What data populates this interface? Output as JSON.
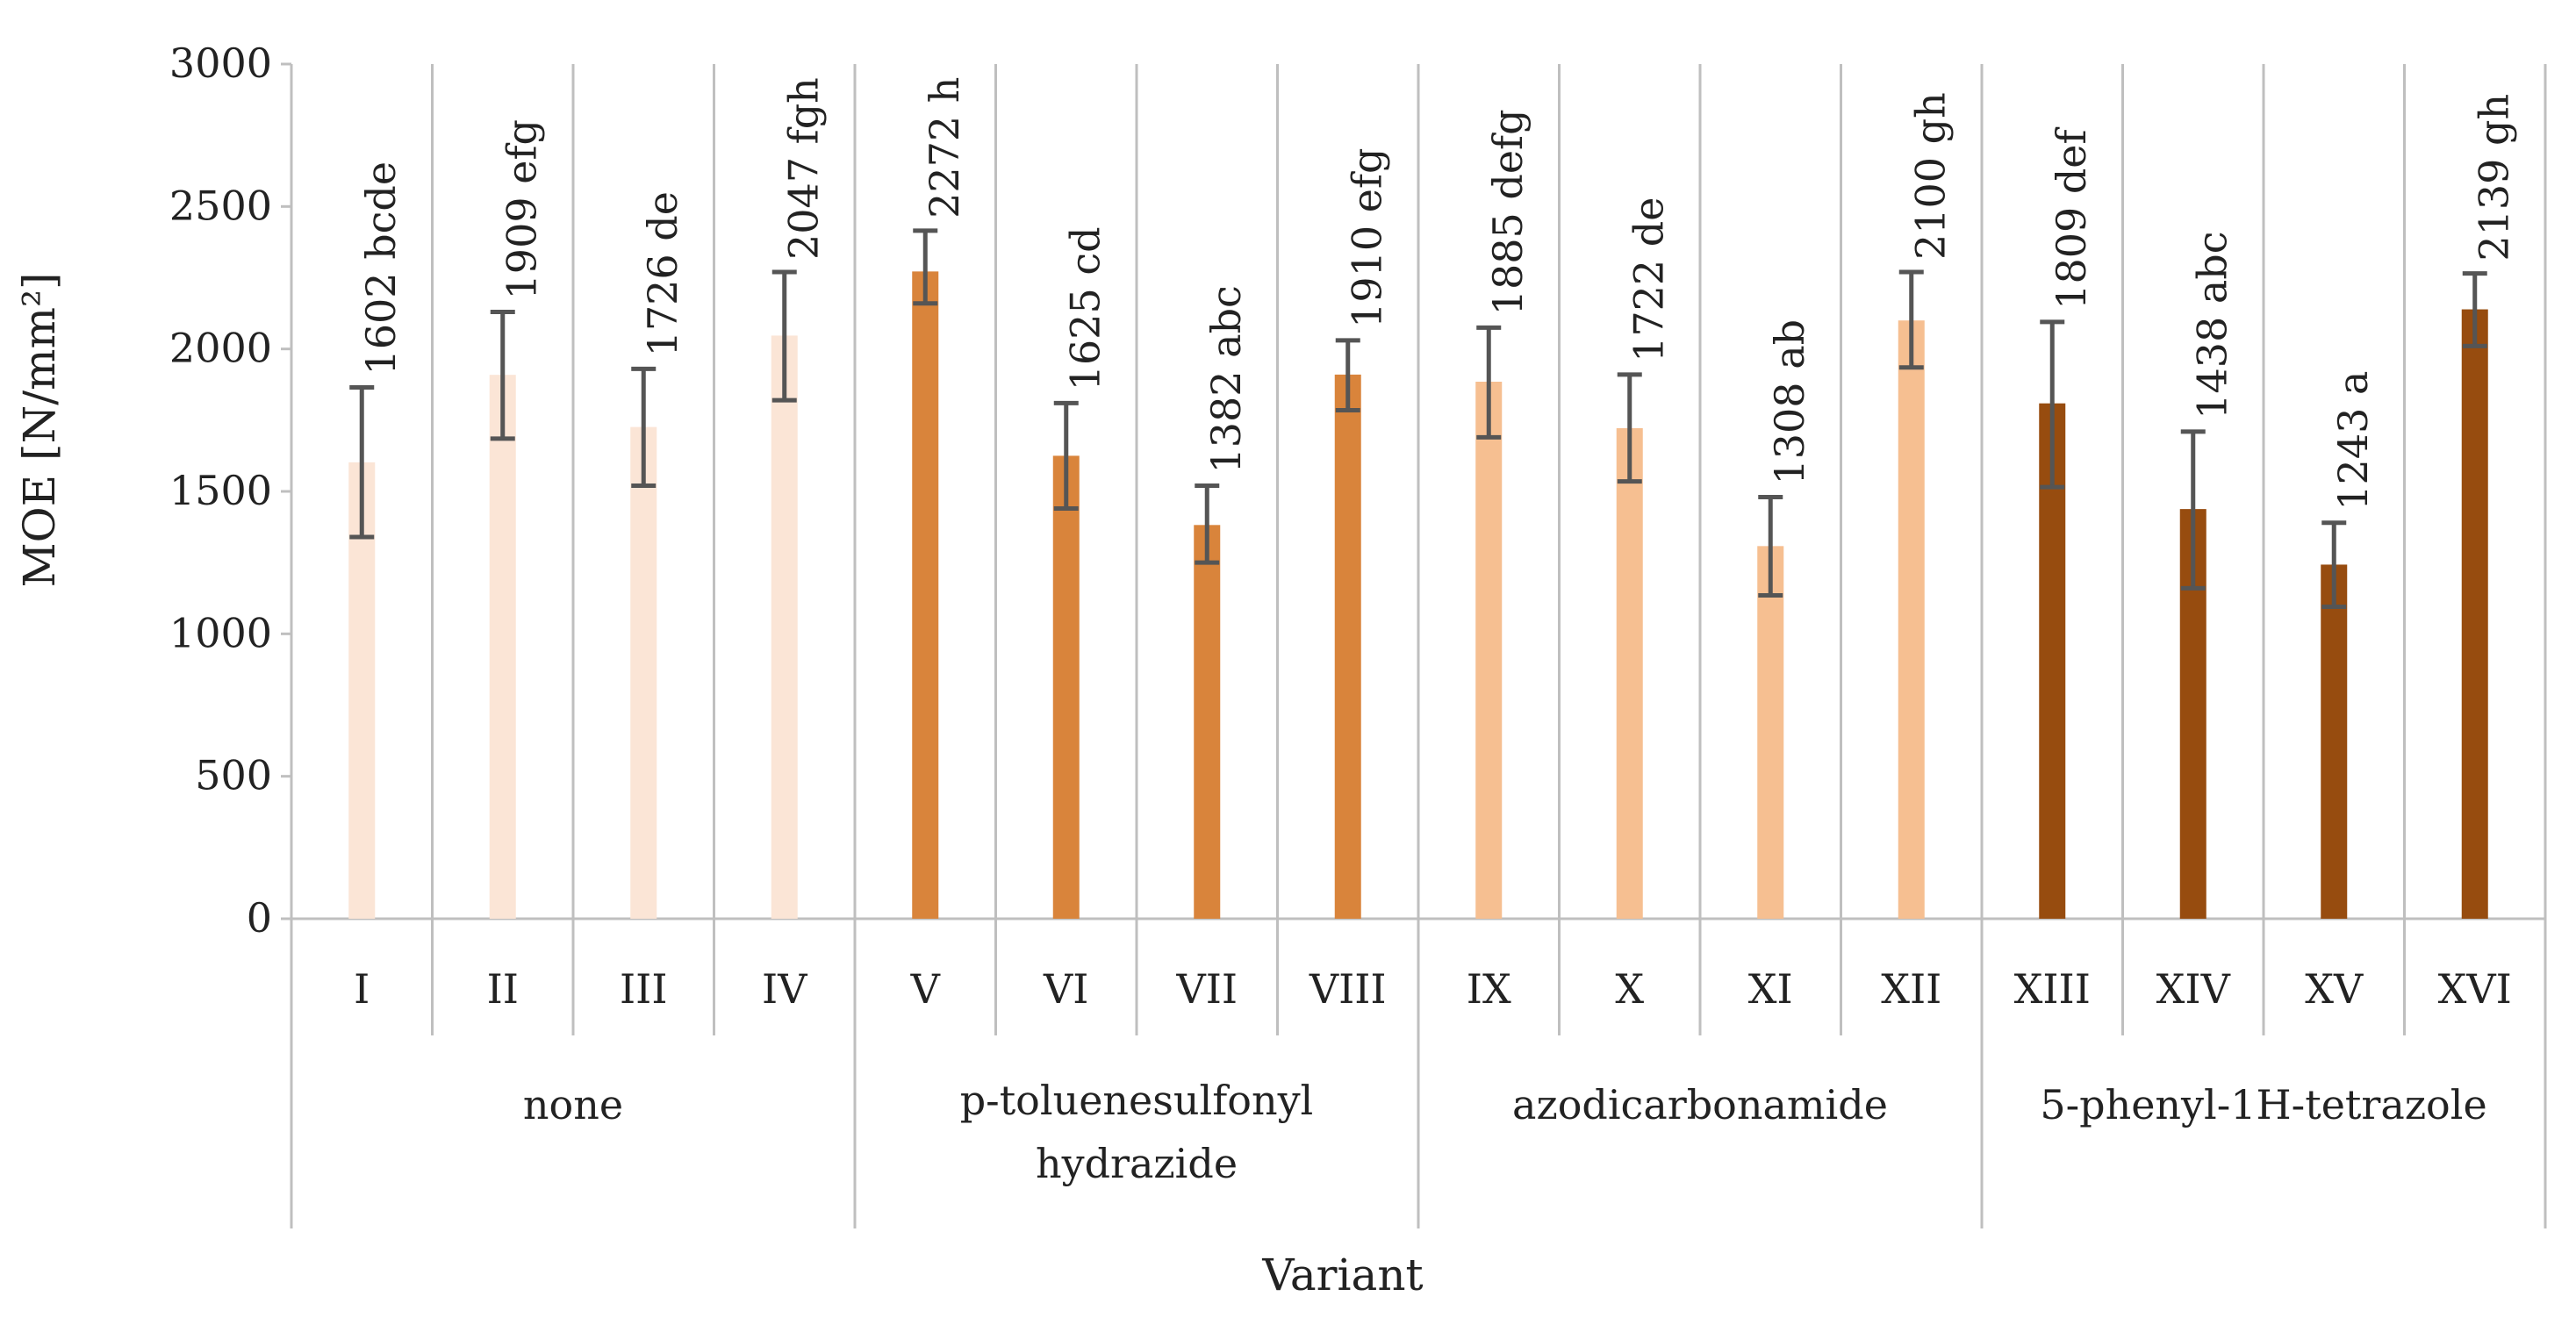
{
  "chart_data": {
    "type": "bar",
    "title": "",
    "xlabel": "Variant",
    "ylabel": "MOE [N/mm²]",
    "ylim": [
      0,
      3000
    ],
    "yticks": [
      "0",
      "500",
      "1000",
      "1500",
      "2000",
      "2500",
      "3000"
    ],
    "ytick_values": [
      0,
      500,
      1000,
      1500,
      2000,
      2500,
      3000
    ],
    "grid": "vertical separators",
    "categories": [
      "I",
      "II",
      "III",
      "IV",
      "V",
      "VI",
      "VII",
      "VIII",
      "IX",
      "X",
      "XI",
      "XII",
      "XIII",
      "XIV",
      "XV",
      "XVI"
    ],
    "values": [
      1602,
      1909,
      1726,
      2047,
      2272,
      1625,
      1382,
      1910,
      1885,
      1722,
      1308,
      2100,
      1809,
      1438,
      1243,
      2139
    ],
    "error_low": [
      1340,
      1685,
      1520,
      1820,
      2160,
      1440,
      1250,
      1785,
      1690,
      1535,
      1135,
      1935,
      1515,
      1160,
      1095,
      2010
    ],
    "error_high": [
      1865,
      2130,
      1930,
      2270,
      2415,
      1810,
      1520,
      2030,
      2075,
      1910,
      1480,
      2270,
      2095,
      1710,
      1390,
      2265
    ],
    "data_labels": [
      "1602 bcde",
      "1909 efg",
      "1726 de",
      "2047 fgh",
      "2272 h",
      "1625 cd",
      "1382 abc",
      "1910 efg",
      "1885  defg",
      "1722 de",
      "1308 ab",
      "2100 gh",
      "1809 def",
      "1438 abc",
      "1243 a",
      "2139 gh"
    ],
    "groups": [
      {
        "lines": [
          "none"
        ],
        "color": "#fbe5d6",
        "start": 0,
        "end": 3
      },
      {
        "lines": [
          "p-toluenesulfonyl",
          "hydrazide"
        ],
        "color": "#d9843b",
        "start": 4,
        "end": 7
      },
      {
        "lines": [
          "azodicarbonamide"
        ],
        "color": "#f6bf91",
        "start": 8,
        "end": 11
      },
      {
        "lines": [
          "5-phenyl-1H-tetrazole"
        ],
        "color": "#974c0f",
        "start": 12,
        "end": 15
      }
    ],
    "colors": {
      "axis": "#bfbfbf",
      "error": "#555555",
      "text": "#222222"
    }
  }
}
